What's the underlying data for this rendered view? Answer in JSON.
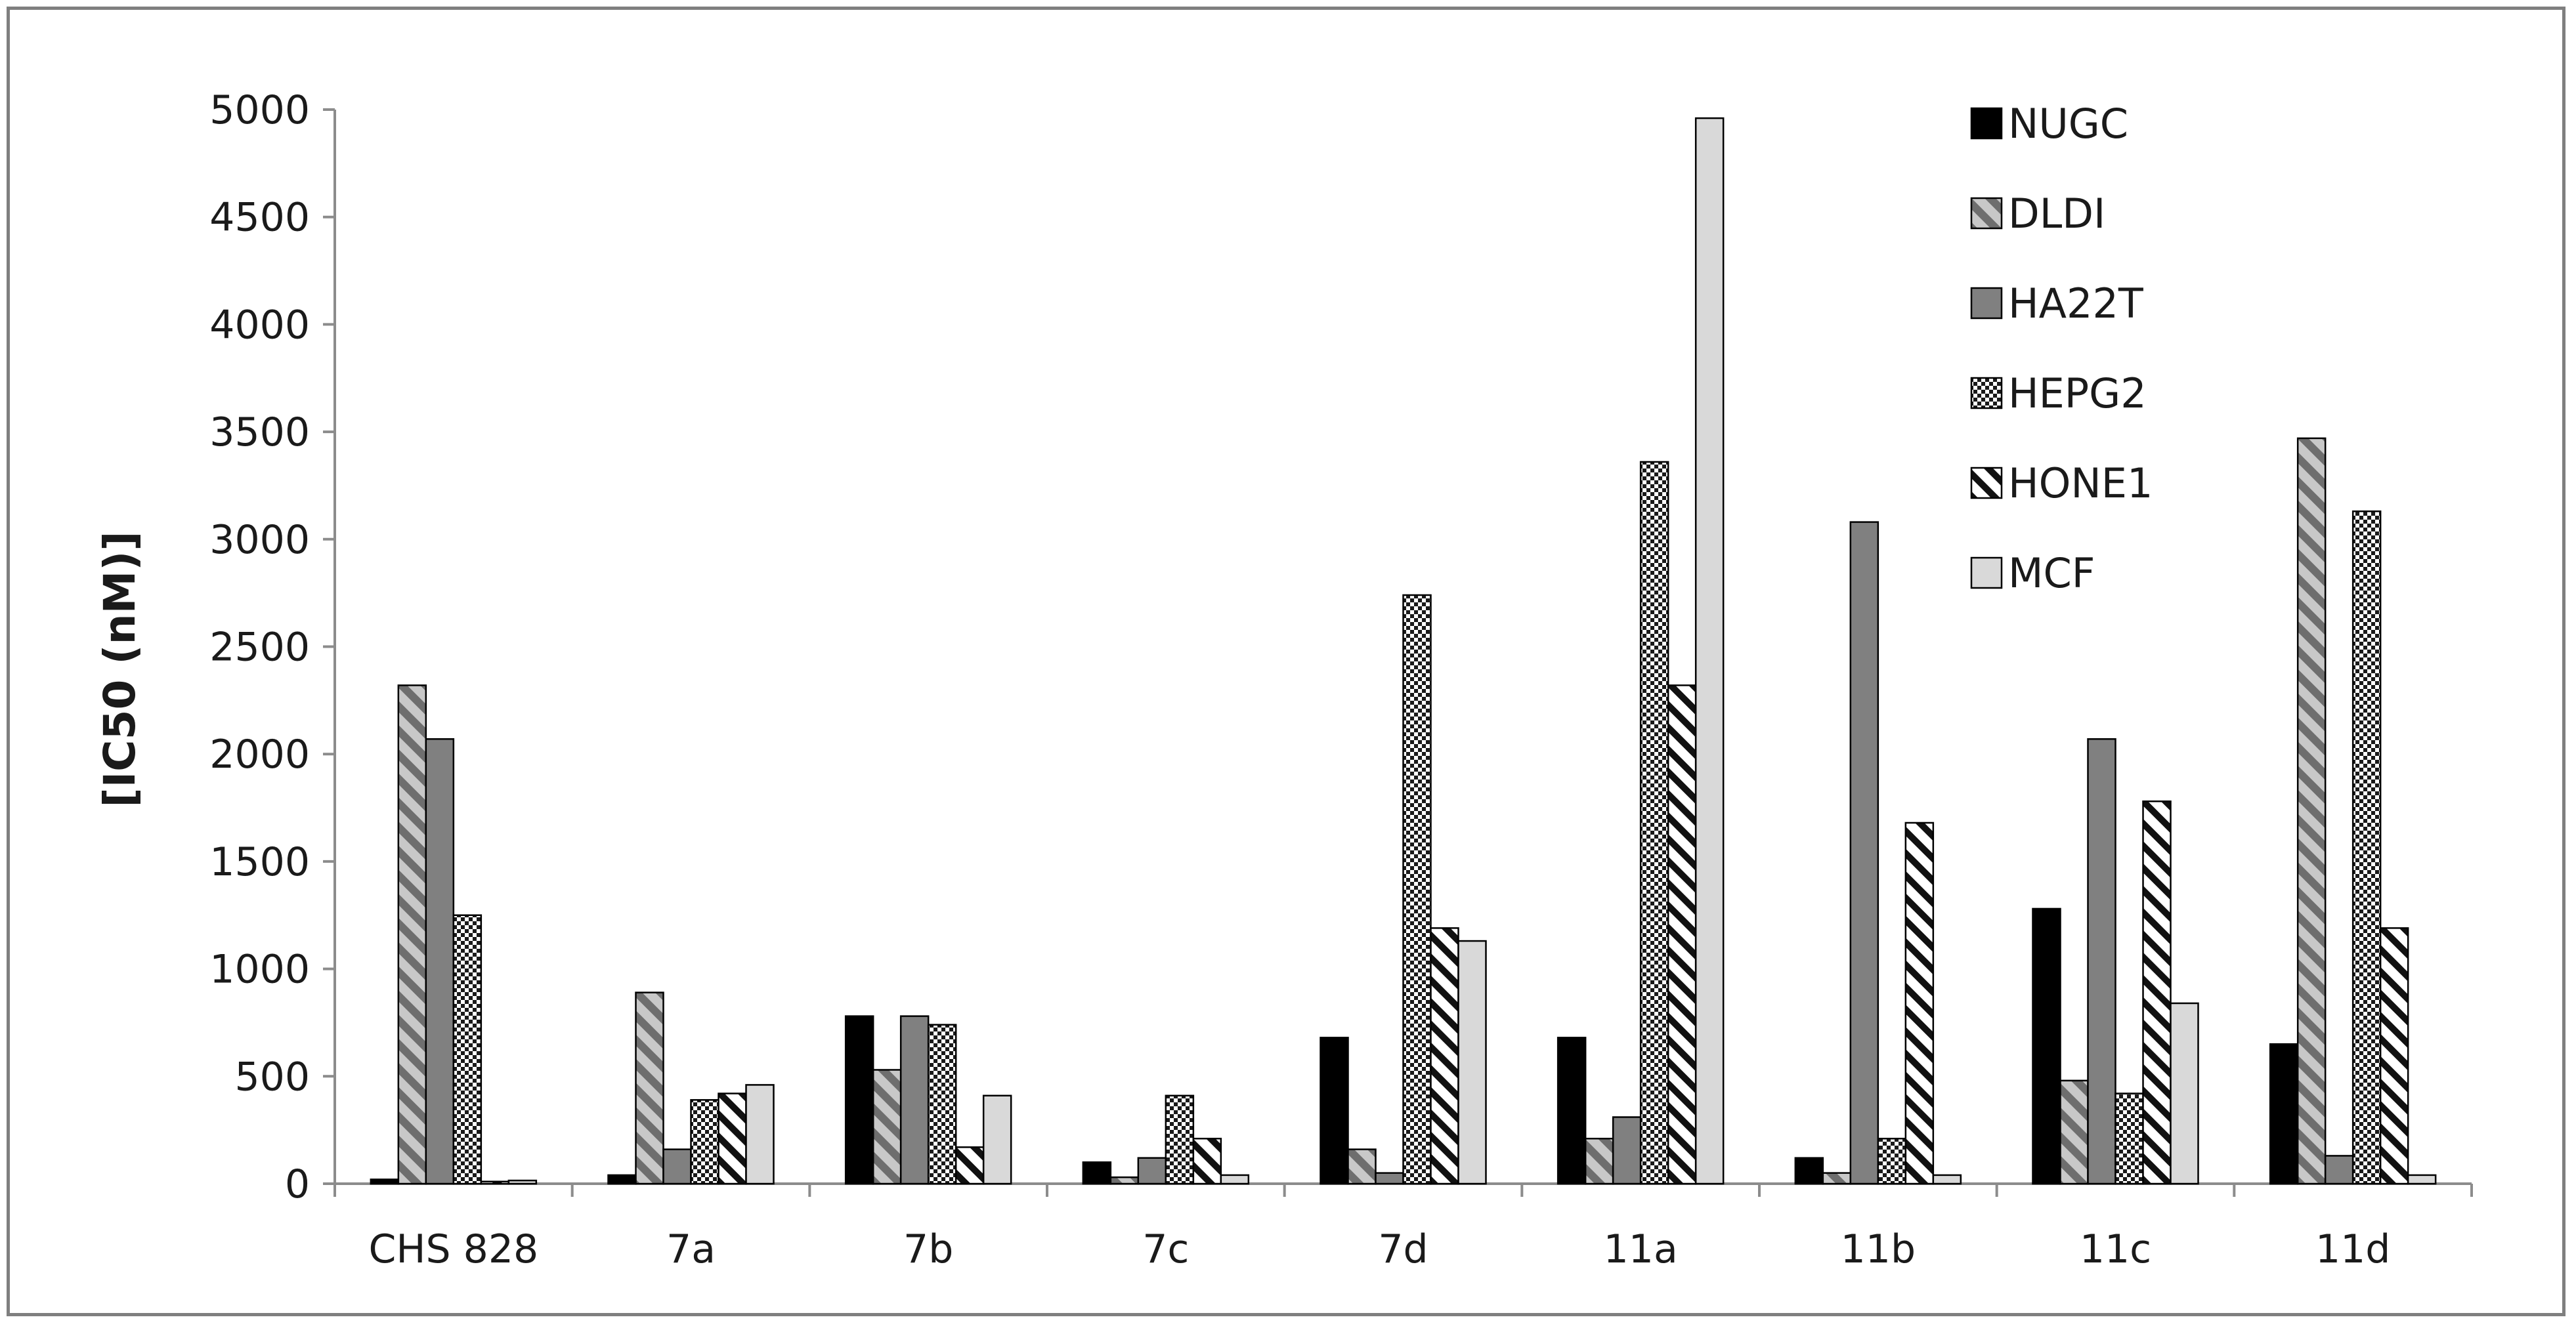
{
  "chart_data": {
    "type": "bar",
    "title": "",
    "xlabel": "",
    "ylabel": "[IC50 (nM)]",
    "ylim": [
      0,
      5000
    ],
    "yticks": [
      0,
      500,
      1000,
      1500,
      2000,
      2500,
      3000,
      3500,
      4000,
      4500,
      5000
    ],
    "grid": false,
    "legend_position": "top-right",
    "categories": [
      "CHS 828",
      "7a",
      "7b",
      "7c",
      "7d",
      "11a",
      "11b",
      "11c",
      "11d"
    ],
    "series": [
      {
        "name": "NUGC",
        "pattern": "solid-black",
        "values": [
          20,
          40,
          780,
          100,
          680,
          680,
          120,
          1280,
          650
        ]
      },
      {
        "name": "DLDI",
        "pattern": "diagonal-gray",
        "values": [
          2320,
          890,
          530,
          30,
          160,
          210,
          50,
          480,
          3470
        ]
      },
      {
        "name": "HA22T",
        "pattern": "solid-dark-gray",
        "values": [
          2070,
          160,
          780,
          120,
          50,
          310,
          3080,
          2070,
          130
        ]
      },
      {
        "name": "HEPG2",
        "pattern": "checker",
        "values": [
          1250,
          390,
          740,
          410,
          2740,
          3360,
          210,
          420,
          3130
        ]
      },
      {
        "name": "HONE1",
        "pattern": "diagonal-black",
        "values": [
          10,
          420,
          170,
          210,
          1190,
          2320,
          1680,
          1780,
          1190
        ]
      },
      {
        "name": "MCF",
        "pattern": "solid-light-gray",
        "values": [
          15,
          460,
          410,
          40,
          1130,
          4960,
          40,
          840,
          40
        ]
      }
    ]
  }
}
